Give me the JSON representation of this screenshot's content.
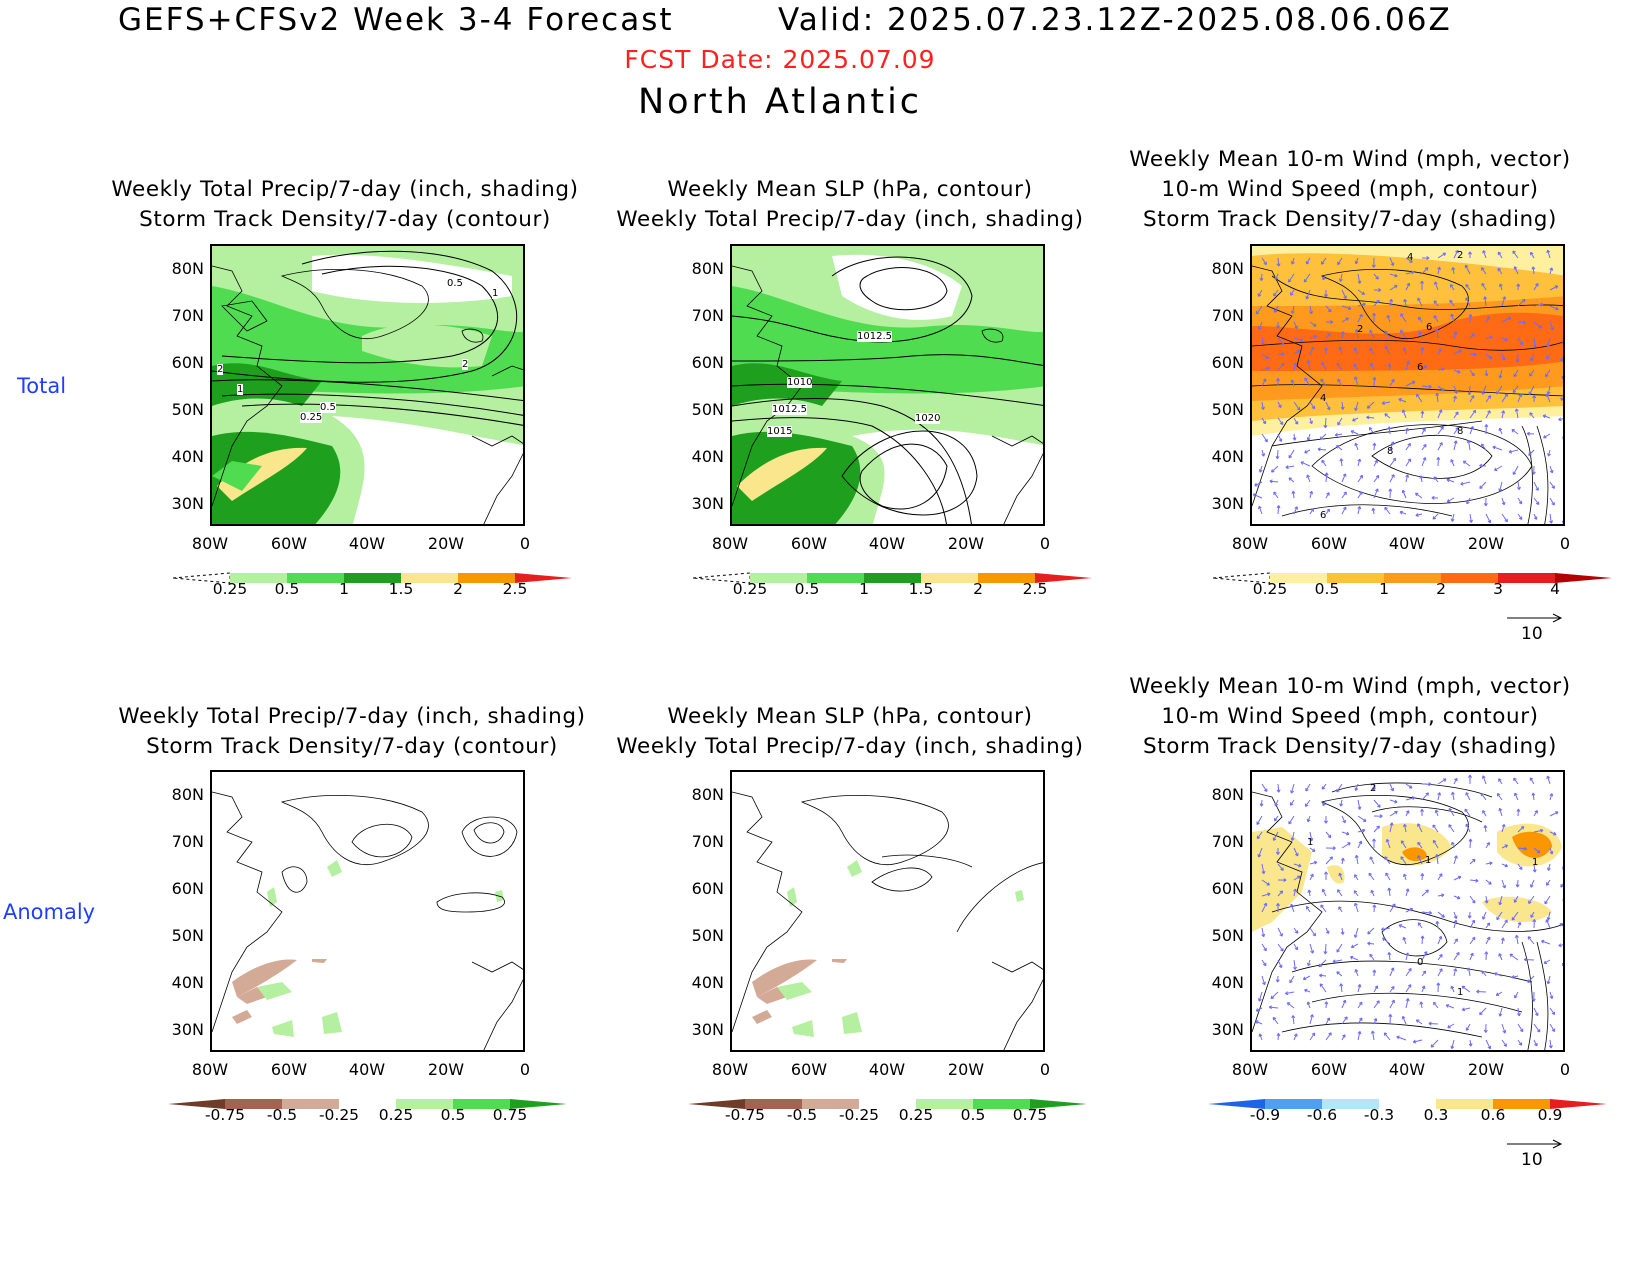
{
  "header": {
    "title": "GEFS+CFSv2 Week 3-4 Forecast",
    "valid": "Valid: 2025.07.23.12Z-2025.08.06.06Z",
    "fcst_date": "FCST Date: 2025.07.09",
    "region": "North Atlantic"
  },
  "rows": {
    "total": "Total",
    "anomaly": "Anomaly"
  },
  "axes": {
    "lat": [
      "80N",
      "70N",
      "60N",
      "50N",
      "40N",
      "30N"
    ],
    "lon": [
      "80W",
      "60W",
      "40W",
      "20W",
      "0"
    ]
  },
  "titles": {
    "precip": [
      "Weekly Total Precip/7-day (inch, shading)",
      "Storm Track Density/7-day (contour)"
    ],
    "slp": [
      "Weekly Mean SLP (hPa, contour)",
      "Weekly Total Precip/7-day (inch, shading)"
    ],
    "wind": [
      "Weekly Mean 10-m Wind (mph, vector)",
      "10-m Wind Speed (mph, contour)",
      "Storm Track Density/7-day (shading)"
    ]
  },
  "colorbars": {
    "precip_total": {
      "labels": [
        "0.25",
        "0.5",
        "1",
        "1.5",
        "2",
        "2.5"
      ],
      "colors": [
        "#ffffff",
        "#b4f0a0",
        "#50dc50",
        "#1ea01e",
        "#fae68c",
        "#fa9600",
        "#e61e1e"
      ]
    },
    "std_total": {
      "labels": [
        "0.25",
        "0.5",
        "1",
        "2",
        "3",
        "4"
      ],
      "colors": [
        "#ffffff",
        "#fff0a0",
        "#ffc03c",
        "#ff9a1e",
        "#ff6a14",
        "#e61e1e",
        "#b40000"
      ]
    },
    "precip_anom": {
      "labels": [
        "-0.75",
        "-0.5",
        "-0.25",
        "0.25",
        "0.5",
        "0.75"
      ],
      "colors": [
        "#6e3c28",
        "#a06450",
        "#d2aa96",
        "#ffffff",
        "#b4f0a0",
        "#50dc50",
        "#1ea01e"
      ]
    },
    "std_anom": {
      "labels": [
        "-0.9",
        "-0.6",
        "-0.3",
        "0.3",
        "0.6",
        "0.9"
      ],
      "colors": [
        "#1e64e6",
        "#50a0f0",
        "#b4e6fa",
        "#ffffff",
        "#fae68c",
        "#fa9600",
        "#e61e1e"
      ]
    }
  },
  "annotations": {
    "p1_contours": [
      "0.5",
      "1",
      "2",
      "2",
      "1",
      "0.5",
      "0.25"
    ],
    "p2_contours": [
      "1012.5",
      "1010",
      "1012.5",
      "1015",
      "1020"
    ],
    "p3_contours": [
      "4",
      "2",
      "2",
      "6",
      "6",
      "4",
      "8",
      "8",
      "6"
    ],
    "p6_contours": [
      "2",
      "1",
      "1",
      "1",
      "0",
      "1"
    ]
  },
  "vector_ref": "10",
  "colors": {
    "blue_label": "#1f3fff",
    "red_date": "#ff2020",
    "vector": "#6b6bff"
  }
}
